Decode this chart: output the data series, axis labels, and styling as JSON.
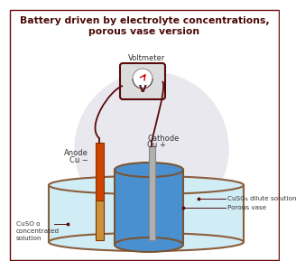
{
  "title_line1": "Battery driven by electrolyte concentrations,",
  "title_line2": "porous vase version",
  "title_color": "#4a0808",
  "background_color": "#ffffff",
  "outer_border_color": "#6a0a0a",
  "voltmeter_label": "Voltmeter",
  "voltmeter_v_label": "V",
  "anode_label_line1": "Anode",
  "anode_label_line2": "Cu −",
  "cathode_label_line1": "Cathode",
  "cathode_label_line2": "Cu +",
  "cuso4_dilute_label": "oCuSO₄ dilute solution",
  "porous_vase_label": "o Porous vase",
  "cuso_conc_label1": "CuSO o",
  "cuso_conc_label2": "concentrated",
  "cuso_conc_label3": "solution",
  "outer_vessel_color": "#d0ecf5",
  "outer_vessel_edge": "#8b5e3c",
  "inner_vessel_color": "#4a90d0",
  "inner_vessel_edge": "#7a5533",
  "anode_upper_color": "#cc4400",
  "anode_lower_color": "#c8933a",
  "cathode_color": "#b0b0b0",
  "cathode_edge": "#888888",
  "wire_color": "#5a0a0a",
  "vm_bg": "#dcdcdc",
  "vm_edge": "#5a0a0a",
  "watermark_color": "#e8e8ee",
  "label_color": "#333333",
  "label_fs": 6.0,
  "title_fs": 7.8
}
